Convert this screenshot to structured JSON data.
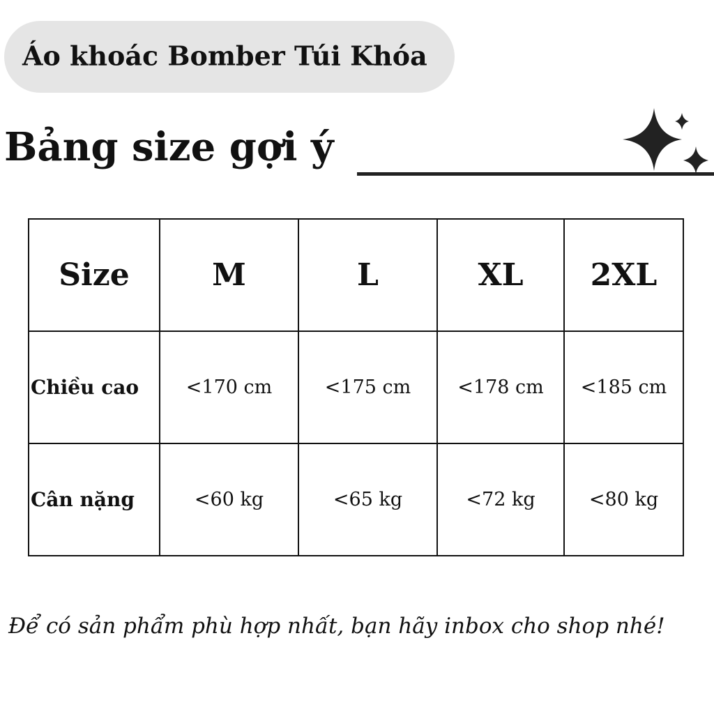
{
  "product_title": "Áo khoác Bomber Túi Khóa",
  "heading": "Bảng size gợi ý",
  "table": {
    "header": [
      "Size",
      "M",
      "L",
      "XL",
      "2XL"
    ],
    "rows": [
      {
        "label": "Chiều cao",
        "values": [
          "<170 cm",
          "<175 cm",
          "<178 cm",
          "<185 cm"
        ]
      },
      {
        "label": "Cân nặng",
        "values": [
          "<60 kg",
          "<65 kg",
          "<72 kg",
          "<80 kg"
        ]
      }
    ]
  },
  "footer": "Để có sản phẩm phù hợp nhất, bạn hãy inbox cho shop nhé!"
}
